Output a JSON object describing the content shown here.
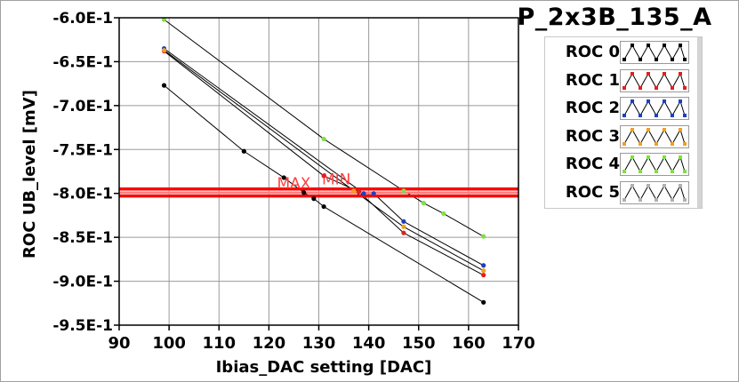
{
  "chart_data": {
    "type": "line",
    "title": "P_2x3B_135_A",
    "xlabel": "Ibias_DAC setting [DAC]",
    "ylabel": "ROC UB_level [mV]",
    "xlim": [
      90,
      170
    ],
    "ylim": [
      -0.95,
      -0.6
    ],
    "xticks": [
      90,
      100,
      110,
      120,
      130,
      140,
      150,
      160,
      170
    ],
    "yticks": [
      -0.6,
      -0.65,
      -0.7,
      -0.75,
      -0.8,
      -0.85,
      -0.9,
      -0.95
    ],
    "xtick_labels": [
      "90",
      "100",
      "110",
      "120",
      "130",
      "140",
      "150",
      "160",
      "170"
    ],
    "ytick_labels": [
      "-6.0E-1",
      "-6.5E-1",
      "-7.0E-1",
      "-7.5E-1",
      "-8.0E-1",
      "-8.5E-1",
      "-9.0E-1",
      "-9.5E-1"
    ],
    "grid": true,
    "legend_position": "right",
    "line_color": "#000000",
    "series": [
      {
        "name": "ROC 0",
        "color": "#000000",
        "points": [
          [
            99,
            -0.677
          ],
          [
            115,
            -0.752
          ],
          [
            123,
            -0.782
          ],
          [
            127,
            -0.799
          ],
          [
            129,
            -0.806
          ],
          [
            131,
            -0.815
          ],
          [
            163,
            -0.924
          ]
        ]
      },
      {
        "name": "ROC 1",
        "color": "#e02020",
        "points": [
          [
            99,
            -0.638
          ],
          [
            131,
            -0.78
          ],
          [
            138,
            -0.798
          ],
          [
            147,
            -0.845
          ],
          [
            163,
            -0.893
          ]
        ]
      },
      {
        "name": "ROC 2",
        "color": "#1f3fbf",
        "points": [
          [
            99,
            -0.635
          ],
          [
            139,
            -0.8
          ],
          [
            141,
            -0.8
          ],
          [
            147,
            -0.832
          ],
          [
            163,
            -0.882
          ]
        ]
      },
      {
        "name": "ROC 3",
        "color": "#f0a020",
        "points": [
          [
            99,
            -0.637
          ],
          [
            137,
            -0.797
          ],
          [
            147,
            -0.838
          ],
          [
            163,
            -0.888
          ]
        ]
      },
      {
        "name": "ROC 4",
        "color": "#7fe040",
        "points": [
          [
            99,
            -0.602
          ],
          [
            131,
            -0.738
          ],
          [
            147,
            -0.797
          ],
          [
            151,
            -0.811
          ],
          [
            155,
            -0.823
          ],
          [
            163,
            -0.849
          ]
        ]
      },
      {
        "name": "ROC 5",
        "color": "#b0b0b0",
        "points": []
      }
    ],
    "limits": [
      {
        "label": "MAX",
        "y": -0.795,
        "color": "#ff0000"
      },
      {
        "label": "MIN",
        "y": -0.803,
        "color": "#ff0000"
      }
    ],
    "limit_line_y": -0.799,
    "limit_line_color": "#ff7f7f",
    "limit_label_color": "#ff4040"
  }
}
